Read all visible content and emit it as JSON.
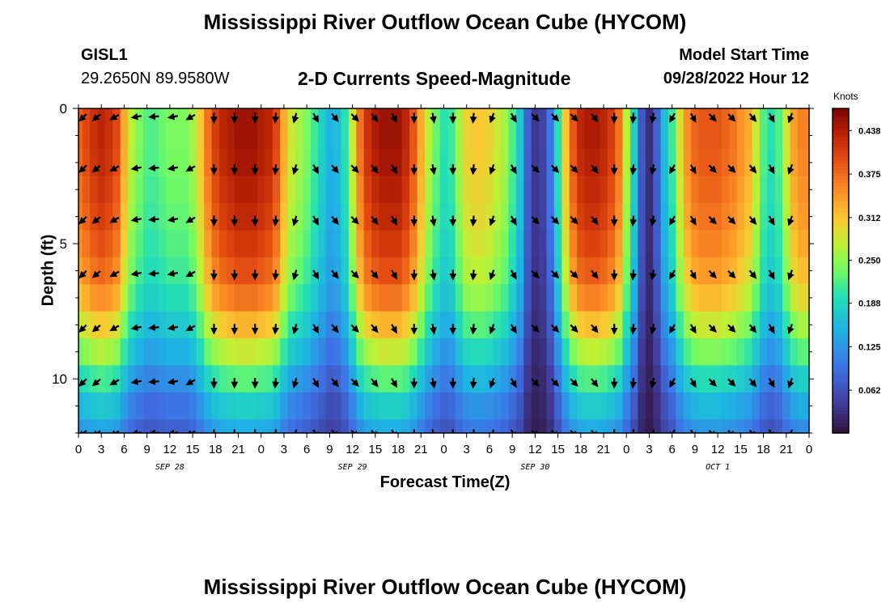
{
  "page": {
    "title": "Mississippi River Outflow Ocean Cube (HYCOM)",
    "bottom_title": "Mississippi River Outflow Ocean Cube (HYCOM)",
    "station": "GISL1",
    "coordinates": "29.2650N  89.9580W",
    "subtitle": "2-D Currents Speed-Magnitude",
    "model_start_label": "Model Start Time",
    "model_start_value": "09/28/2022 Hour 12"
  },
  "chart_data": {
    "type": "heatmap",
    "xlabel": "Forecast Time(Z)",
    "ylabel": "Depth (ft)",
    "colorbar_label": "Knots",
    "colorbar_ticks": [
      "0.438",
      "0.375",
      "0.312",
      "0.250",
      "0.188",
      "0.125",
      "0.062"
    ],
    "colorbar_tick_values": [
      0.438,
      0.375,
      0.312,
      0.25,
      0.188,
      0.125,
      0.062
    ],
    "colorbar_range": [
      0,
      0.47
    ],
    "x_hours_range": [
      0,
      96
    ],
    "x_tick_labels": [
      "0",
      "3",
      "6",
      "9",
      "12",
      "15",
      "18",
      "21",
      "0",
      "3",
      "6",
      "9",
      "12",
      "15",
      "18",
      "21",
      "0",
      "3",
      "6",
      "9",
      "12",
      "15",
      "18",
      "21",
      "0",
      "3",
      "6",
      "9",
      "12",
      "15",
      "18",
      "21",
      "0"
    ],
    "date_labels": [
      {
        "text": "SEP 28",
        "hour": 12
      },
      {
        "text": "SEP 29",
        "hour": 36
      },
      {
        "text": "SEP 30",
        "hour": 60
      },
      {
        "text": "OCT 1",
        "hour": 84
      }
    ],
    "y_range": [
      0,
      12
    ],
    "y_major_ticks": [
      0,
      5,
      10
    ],
    "y_minor_step": 1,
    "depth_levels": [
      0,
      1,
      2,
      3,
      4,
      5,
      6,
      7,
      8,
      9,
      10,
      11,
      12
    ],
    "time_hours": [
      0,
      1,
      2,
      3,
      4,
      5,
      6,
      7,
      8,
      9,
      10,
      11,
      12,
      13,
      14,
      15,
      16,
      17,
      18,
      19,
      20,
      21,
      22,
      23,
      24,
      25,
      26,
      27,
      28,
      29,
      30,
      31,
      32,
      33,
      34,
      35,
      36,
      37,
      38,
      39,
      40,
      41,
      42,
      43,
      44,
      45,
      46,
      47,
      48,
      49,
      50,
      51,
      52,
      53,
      54,
      55,
      56,
      57,
      58,
      59,
      60,
      61,
      62,
      63,
      64,
      65,
      66,
      67,
      68,
      69,
      70,
      71,
      72,
      73,
      74,
      75,
      76,
      77,
      78,
      79,
      80,
      81,
      82,
      83,
      84,
      85,
      86,
      87,
      88,
      89,
      90,
      91,
      92,
      93,
      94,
      95,
      96
    ],
    "surface_speed_knots": [
      0.38,
      0.4,
      0.42,
      0.43,
      0.42,
      0.4,
      0.33,
      0.27,
      0.24,
      0.22,
      0.22,
      0.23,
      0.24,
      0.24,
      0.24,
      0.26,
      0.31,
      0.37,
      0.41,
      0.43,
      0.44,
      0.45,
      0.45,
      0.45,
      0.44,
      0.43,
      0.4,
      0.33,
      0.28,
      0.26,
      0.24,
      0.21,
      0.18,
      0.15,
      0.16,
      0.2,
      0.28,
      0.37,
      0.42,
      0.44,
      0.45,
      0.45,
      0.45,
      0.43,
      0.39,
      0.33,
      0.27,
      0.23,
      0.2,
      0.21,
      0.26,
      0.3,
      0.31,
      0.31,
      0.3,
      0.28,
      0.26,
      0.22,
      0.17,
      0.08,
      0.04,
      0.05,
      0.1,
      0.2,
      0.31,
      0.39,
      0.43,
      0.44,
      0.44,
      0.43,
      0.41,
      0.37,
      0.27,
      0.18,
      0.07,
      0.03,
      0.08,
      0.16,
      0.21,
      0.29,
      0.35,
      0.38,
      0.39,
      0.39,
      0.39,
      0.38,
      0.37,
      0.35,
      0.33,
      0.28,
      0.22,
      0.2,
      0.22,
      0.28,
      0.34,
      0.36,
      0.36
    ],
    "speed_profile_by_depth": [
      1.0,
      1.0,
      0.99,
      0.97,
      0.95,
      0.92,
      0.88,
      0.82,
      0.72,
      0.62,
      0.5,
      0.4,
      0.33
    ],
    "vector_times": [
      0.7,
      2.5,
      4.9,
      7.8,
      10.1,
      12.6,
      14.9,
      17.8,
      20.5,
      23.2,
      25.9,
      28.5,
      31.1,
      33.6,
      36.2,
      38.8,
      41.4,
      44.1,
      46.6,
      49.2,
      51.9,
      54.4,
      57.1,
      59.9,
      62.5,
      65.0,
      67.7,
      70.4,
      72.9,
      75.5,
      78.1,
      80.7,
      83.2,
      85.7,
      88.5,
      91.0,
      93.6
    ],
    "vector_depths": [
      0.3,
      2.2,
      4.1,
      6.1,
      8.1,
      10.1,
      12.0
    ],
    "vector_direction_deg": [
      -135,
      -140,
      -150,
      -170,
      -175,
      -170,
      -150,
      -90,
      -90,
      -90,
      -95,
      -105,
      -60,
      -50,
      -45,
      -50,
      -60,
      -90,
      -80,
      -90,
      -95,
      -110,
      -60,
      -45,
      -45,
      -45,
      -50,
      -90,
      -95,
      -100,
      -120,
      -60,
      -45,
      -45,
      -50,
      -60,
      -110
    ]
  }
}
